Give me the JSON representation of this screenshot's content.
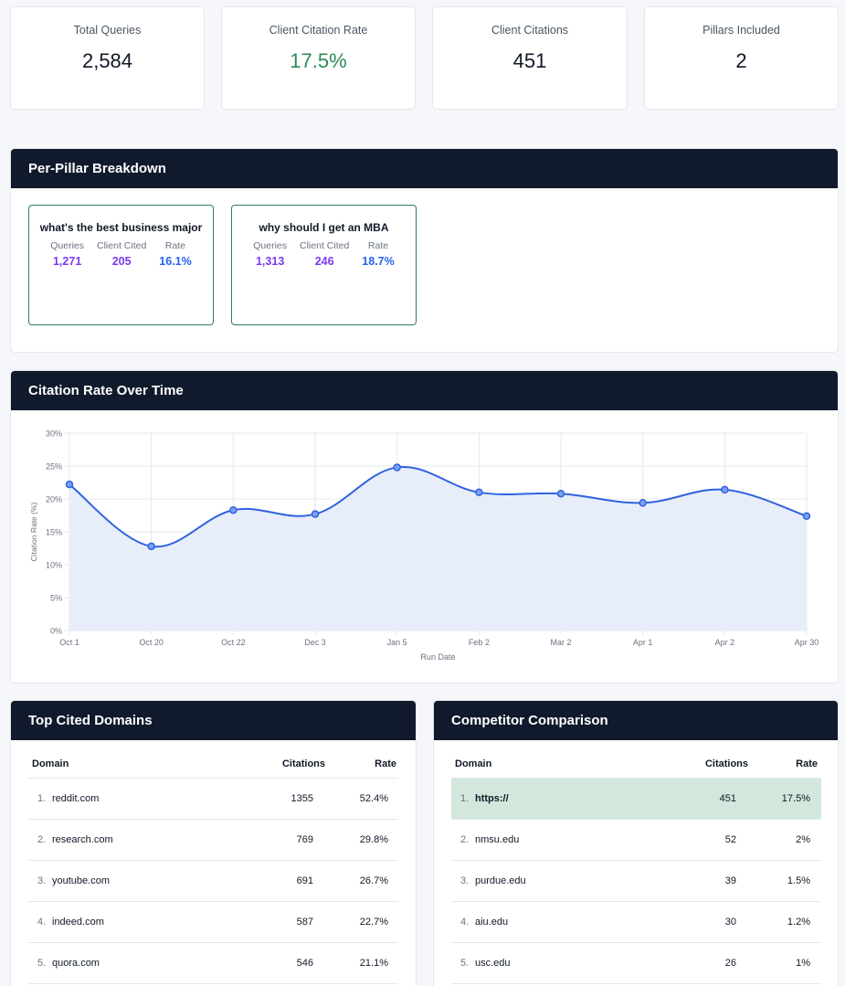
{
  "stats": [
    {
      "label": "Total Queries",
      "value": "2,584"
    },
    {
      "label": "Client Citation Rate",
      "value": "17.5%",
      "accent": "#2e8b57"
    },
    {
      "label": "Client Citations",
      "value": "451"
    },
    {
      "label": "Pillars Included",
      "value": "2"
    }
  ],
  "pillars": {
    "title": "Per-Pillar Breakdown",
    "items": [
      {
        "name": "what's the best business major",
        "queries_label": "Queries",
        "queries": "1,271",
        "cited_label": "Client Cited",
        "cited": "205",
        "rate_label": "Rate",
        "rate": "16.1%"
      },
      {
        "name": "why should I get an MBA",
        "queries_label": "Queries",
        "queries": "1,313",
        "cited_label": "Client Cited",
        "cited": "246",
        "rate_label": "Rate",
        "rate": "18.7%"
      }
    ]
  },
  "timeline": {
    "title": "Citation Rate Over Time"
  },
  "chart_data": {
    "type": "line",
    "x": [
      "Oct 1",
      "Oct 20",
      "Oct 22",
      "Dec 3",
      "Jan 5",
      "Feb 2",
      "Mar 2",
      "Apr 1",
      "Apr 2",
      "Apr 30"
    ],
    "series": [
      {
        "values": [
          22.2,
          12.8,
          18.3,
          17.7,
          24.8,
          21.0,
          20.8,
          19.4,
          21.4,
          17.4
        ]
      }
    ],
    "yticks": [
      "0%",
      "5%",
      "10%",
      "15%",
      "20%",
      "25%",
      "30%"
    ],
    "ylim": [
      0,
      30
    ],
    "xlabel": "Run Date",
    "ylabel": "Citation Rate (%)",
    "grid": true,
    "line_color": "#2f63e0",
    "fill_color": "#e8edfa"
  },
  "domains": {
    "title": "Top Cited Domains",
    "headers": {
      "domain": "Domain",
      "citations": "Citations",
      "rate": "Rate"
    },
    "rows": [
      {
        "idx": "1.",
        "domain": "reddit.com",
        "citations": "1355",
        "rate": "52.4%"
      },
      {
        "idx": "2.",
        "domain": "research.com",
        "citations": "769",
        "rate": "29.8%"
      },
      {
        "idx": "3.",
        "domain": "youtube.com",
        "citations": "691",
        "rate": "26.7%"
      },
      {
        "idx": "4.",
        "domain": "indeed.com",
        "citations": "587",
        "rate": "22.7%"
      },
      {
        "idx": "5.",
        "domain": "quora.com",
        "citations": "546",
        "rate": "21.1%"
      }
    ]
  },
  "competitors": {
    "title": "Competitor Comparison",
    "headers": {
      "domain": "Domain",
      "citations": "Citations",
      "rate": "Rate"
    },
    "rows": [
      {
        "idx": "1.",
        "domain": "https://",
        "citations": "451",
        "rate": "17.5%",
        "highlight": true
      },
      {
        "idx": "2.",
        "domain": "nmsu.edu",
        "citations": "52",
        "rate": "2%"
      },
      {
        "idx": "3.",
        "domain": "purdue.edu",
        "citations": "39",
        "rate": "1.5%"
      },
      {
        "idx": "4.",
        "domain": "aiu.edu",
        "citations": "30",
        "rate": "1.2%"
      },
      {
        "idx": "5.",
        "domain": "usc.edu",
        "citations": "26",
        "rate": "1%"
      }
    ]
  }
}
